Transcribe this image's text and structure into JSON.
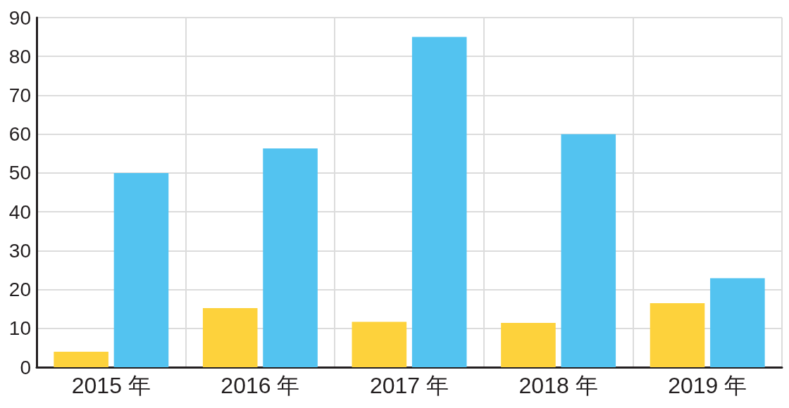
{
  "chart_data": {
    "type": "bar",
    "categories": [
      "2015 年",
      "2016 年",
      "2017 年",
      "2018 年",
      "2019 年"
    ],
    "series": [
      {
        "color": "#fdd23c",
        "values": [
          4,
          15.2,
          11.7,
          11.4,
          16.5
        ]
      },
      {
        "color": "#53c3f0",
        "values": [
          50,
          56.3,
          85,
          60,
          22.9
        ]
      }
    ],
    "ylim": [
      0,
      90
    ],
    "yticks": [
      0,
      10,
      20,
      30,
      40,
      50,
      60,
      70,
      80,
      90
    ],
    "grid": true
  }
}
